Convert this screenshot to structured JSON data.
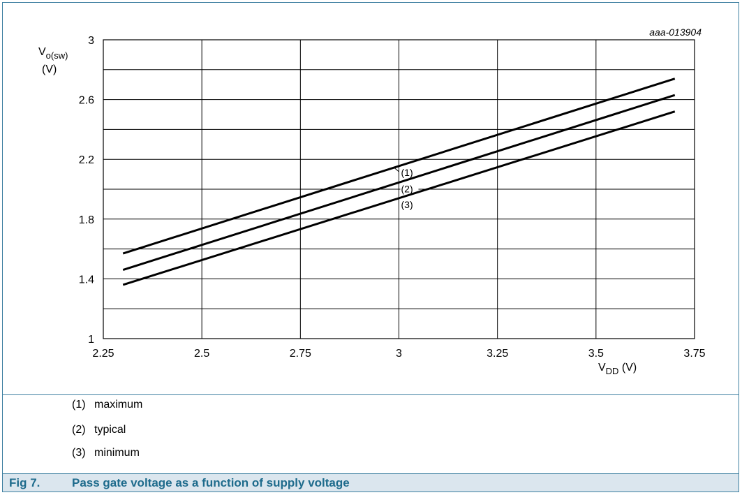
{
  "chart_data": {
    "type": "line",
    "id_label": "aaa-013904",
    "ylabel": {
      "main": "V",
      "sub": "o(sw)",
      "unit": "(V)"
    },
    "xlabel": {
      "main": "V",
      "sub": "DD",
      "unit": " (V)"
    },
    "xlim": [
      2.25,
      3.75
    ],
    "ylim": [
      1,
      3
    ],
    "x_major_ticks": [
      2.25,
      2.5,
      2.75,
      3,
      3.25,
      3.5,
      3.75
    ],
    "x_tick_labels": [
      "2.25",
      "2.5",
      "2.75",
      "3",
      "3.25",
      "3.5",
      "3.75"
    ],
    "y_grid": [
      1,
      1.2,
      1.4,
      1.6,
      1.8,
      2,
      2.2,
      2.4,
      2.6,
      2.8,
      3
    ],
    "y_tick_values": [
      1,
      1.4,
      1.8,
      2.2,
      2.6,
      3
    ],
    "y_tick_labels": [
      "1",
      "1.4",
      "1.8",
      "2.2",
      "2.6",
      "3"
    ],
    "grid": true,
    "series": [
      {
        "label": "(1)",
        "x": [
          2.3,
          3.7
        ],
        "y": [
          1.57,
          2.74
        ]
      },
      {
        "label": "(2)",
        "x": [
          2.3,
          3.7
        ],
        "y": [
          1.46,
          2.63
        ]
      },
      {
        "label": "(3)",
        "x": [
          2.3,
          3.7
        ],
        "y": [
          1.36,
          2.52
        ]
      }
    ],
    "series_label_x": 3.0
  },
  "legend": [
    {
      "num": "(1)",
      "text": "maximum"
    },
    {
      "num": "(2)",
      "text": "typical"
    },
    {
      "num": "(3)",
      "text": "minimum"
    }
  ],
  "caption": {
    "fig": "Fig 7.",
    "title": "Pass gate voltage as a function of supply voltage"
  },
  "colors": {
    "frame": "#3d7fa0",
    "caption_bg": "#dbe6ee",
    "caption_text": "#1e6b8c"
  }
}
